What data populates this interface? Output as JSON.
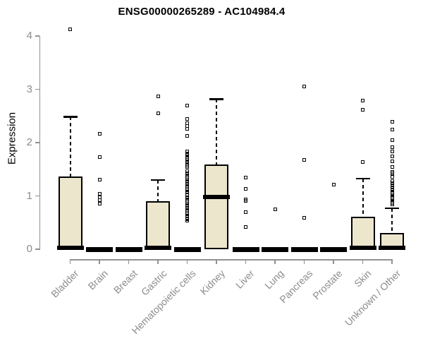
{
  "chart_data": {
    "type": "boxplot",
    "title": "ENSG00000265289 - AC104984.4",
    "ylabel": "Expression",
    "xlabel": "",
    "ylim": [
      0,
      4
    ],
    "yticks": [
      0,
      1,
      2,
      3,
      4
    ],
    "grid": false,
    "legend_position": "none",
    "colors": {
      "box_fill": "#ECE6CD",
      "box_border": "#000000",
      "median": "#000000",
      "whisker": "#000000",
      "axis": "#919191",
      "tick_label": "#8C8C8C",
      "title": "#000000"
    },
    "categories": [
      "Bladder",
      "Brain",
      "Breast",
      "Gastric",
      "Hematopoietic cells",
      "Kidney",
      "Liver",
      "Lung",
      "Pancreas",
      "Prostate",
      "Skin",
      "Unknown / Other"
    ],
    "series": [
      {
        "category": "Bladder",
        "q1": 0,
        "median": 0.02,
        "q3": 1.37,
        "whisker_low": 0,
        "whisker_high": 2.49,
        "outliers": [
          4.12
        ]
      },
      {
        "category": "Brain",
        "q1": 0,
        "median": 0,
        "q3": 0,
        "whisker_low": 0,
        "whisker_high": 0,
        "outliers": [
          2.16,
          1.73,
          1.3,
          1.04,
          0.97,
          0.92,
          0.85
        ]
      },
      {
        "category": "Breast",
        "q1": 0,
        "median": 0,
        "q3": 0,
        "whisker_low": 0,
        "whisker_high": 0,
        "outliers": []
      },
      {
        "category": "Gastric",
        "q1": 0,
        "median": 0.02,
        "q3": 0.9,
        "whisker_low": 0,
        "whisker_high": 1.3,
        "outliers": [
          2.87,
          2.55
        ]
      },
      {
        "category": "Hematopoietic cells",
        "q1": 0,
        "median": 0,
        "q3": 0,
        "whisker_low": 0,
        "whisker_high": 0,
        "outliers": [
          2.69,
          2.45,
          2.37,
          2.31,
          2.26,
          2.12,
          1.83,
          1.8,
          1.77,
          1.73,
          1.7,
          1.67,
          1.64,
          1.6,
          1.57,
          1.54,
          1.46,
          1.43,
          1.41,
          1.38,
          1.36,
          1.33,
          1.31,
          1.28,
          1.26,
          1.23,
          1.21,
          1.18,
          1.16,
          1.13,
          1.11,
          1.08,
          1.06,
          1.03,
          1.01,
          0.98,
          0.96,
          0.93,
          0.91,
          0.88,
          0.86,
          0.83,
          0.81,
          0.78,
          0.76,
          0.73,
          0.71,
          0.68,
          0.66,
          0.63,
          0.61,
          0.58,
          0.56,
          0.53
        ]
      },
      {
        "category": "Kidney",
        "q1": 0,
        "median": 0.98,
        "q3": 1.59,
        "whisker_low": 0,
        "whisker_high": 2.82,
        "outliers": []
      },
      {
        "category": "Liver",
        "q1": 0,
        "median": 0,
        "q3": 0,
        "whisker_low": 0,
        "whisker_high": 0,
        "outliers": [
          1.35,
          1.13,
          0.93,
          0.91,
          0.7,
          0.42
        ]
      },
      {
        "category": "Lung",
        "q1": 0,
        "median": 0,
        "q3": 0,
        "whisker_low": 0,
        "whisker_high": 0,
        "outliers": [
          0.75
        ]
      },
      {
        "category": "Pancreas",
        "q1": 0,
        "median": 0,
        "q3": 0,
        "whisker_low": 0,
        "whisker_high": 0,
        "outliers": [
          3.05,
          1.68,
          0.59
        ]
      },
      {
        "category": "Prostate",
        "q1": 0,
        "median": 0,
        "q3": 0,
        "whisker_low": 0,
        "whisker_high": 0,
        "outliers": [
          1.21
        ]
      },
      {
        "category": "Skin",
        "q1": 0,
        "median": 0.02,
        "q3": 0.61,
        "whisker_low": 0,
        "whisker_high": 1.33,
        "outliers": [
          2.79,
          2.62,
          1.64
        ]
      },
      {
        "category": "Unknown / Other",
        "q1": 0,
        "median": 0.02,
        "q3": 0.3,
        "whisker_low": 0,
        "whisker_high": 0.77,
        "outliers": [
          2.39,
          2.25,
          2.05,
          1.92,
          1.83,
          1.74,
          1.65,
          1.54,
          1.45,
          1.42,
          1.36,
          1.28,
          1.24,
          1.2,
          1.16,
          1.12,
          1.08,
          1.05,
          1.02,
          0.99,
          0.96,
          0.93,
          0.9,
          0.87,
          0.84
        ]
      }
    ]
  }
}
